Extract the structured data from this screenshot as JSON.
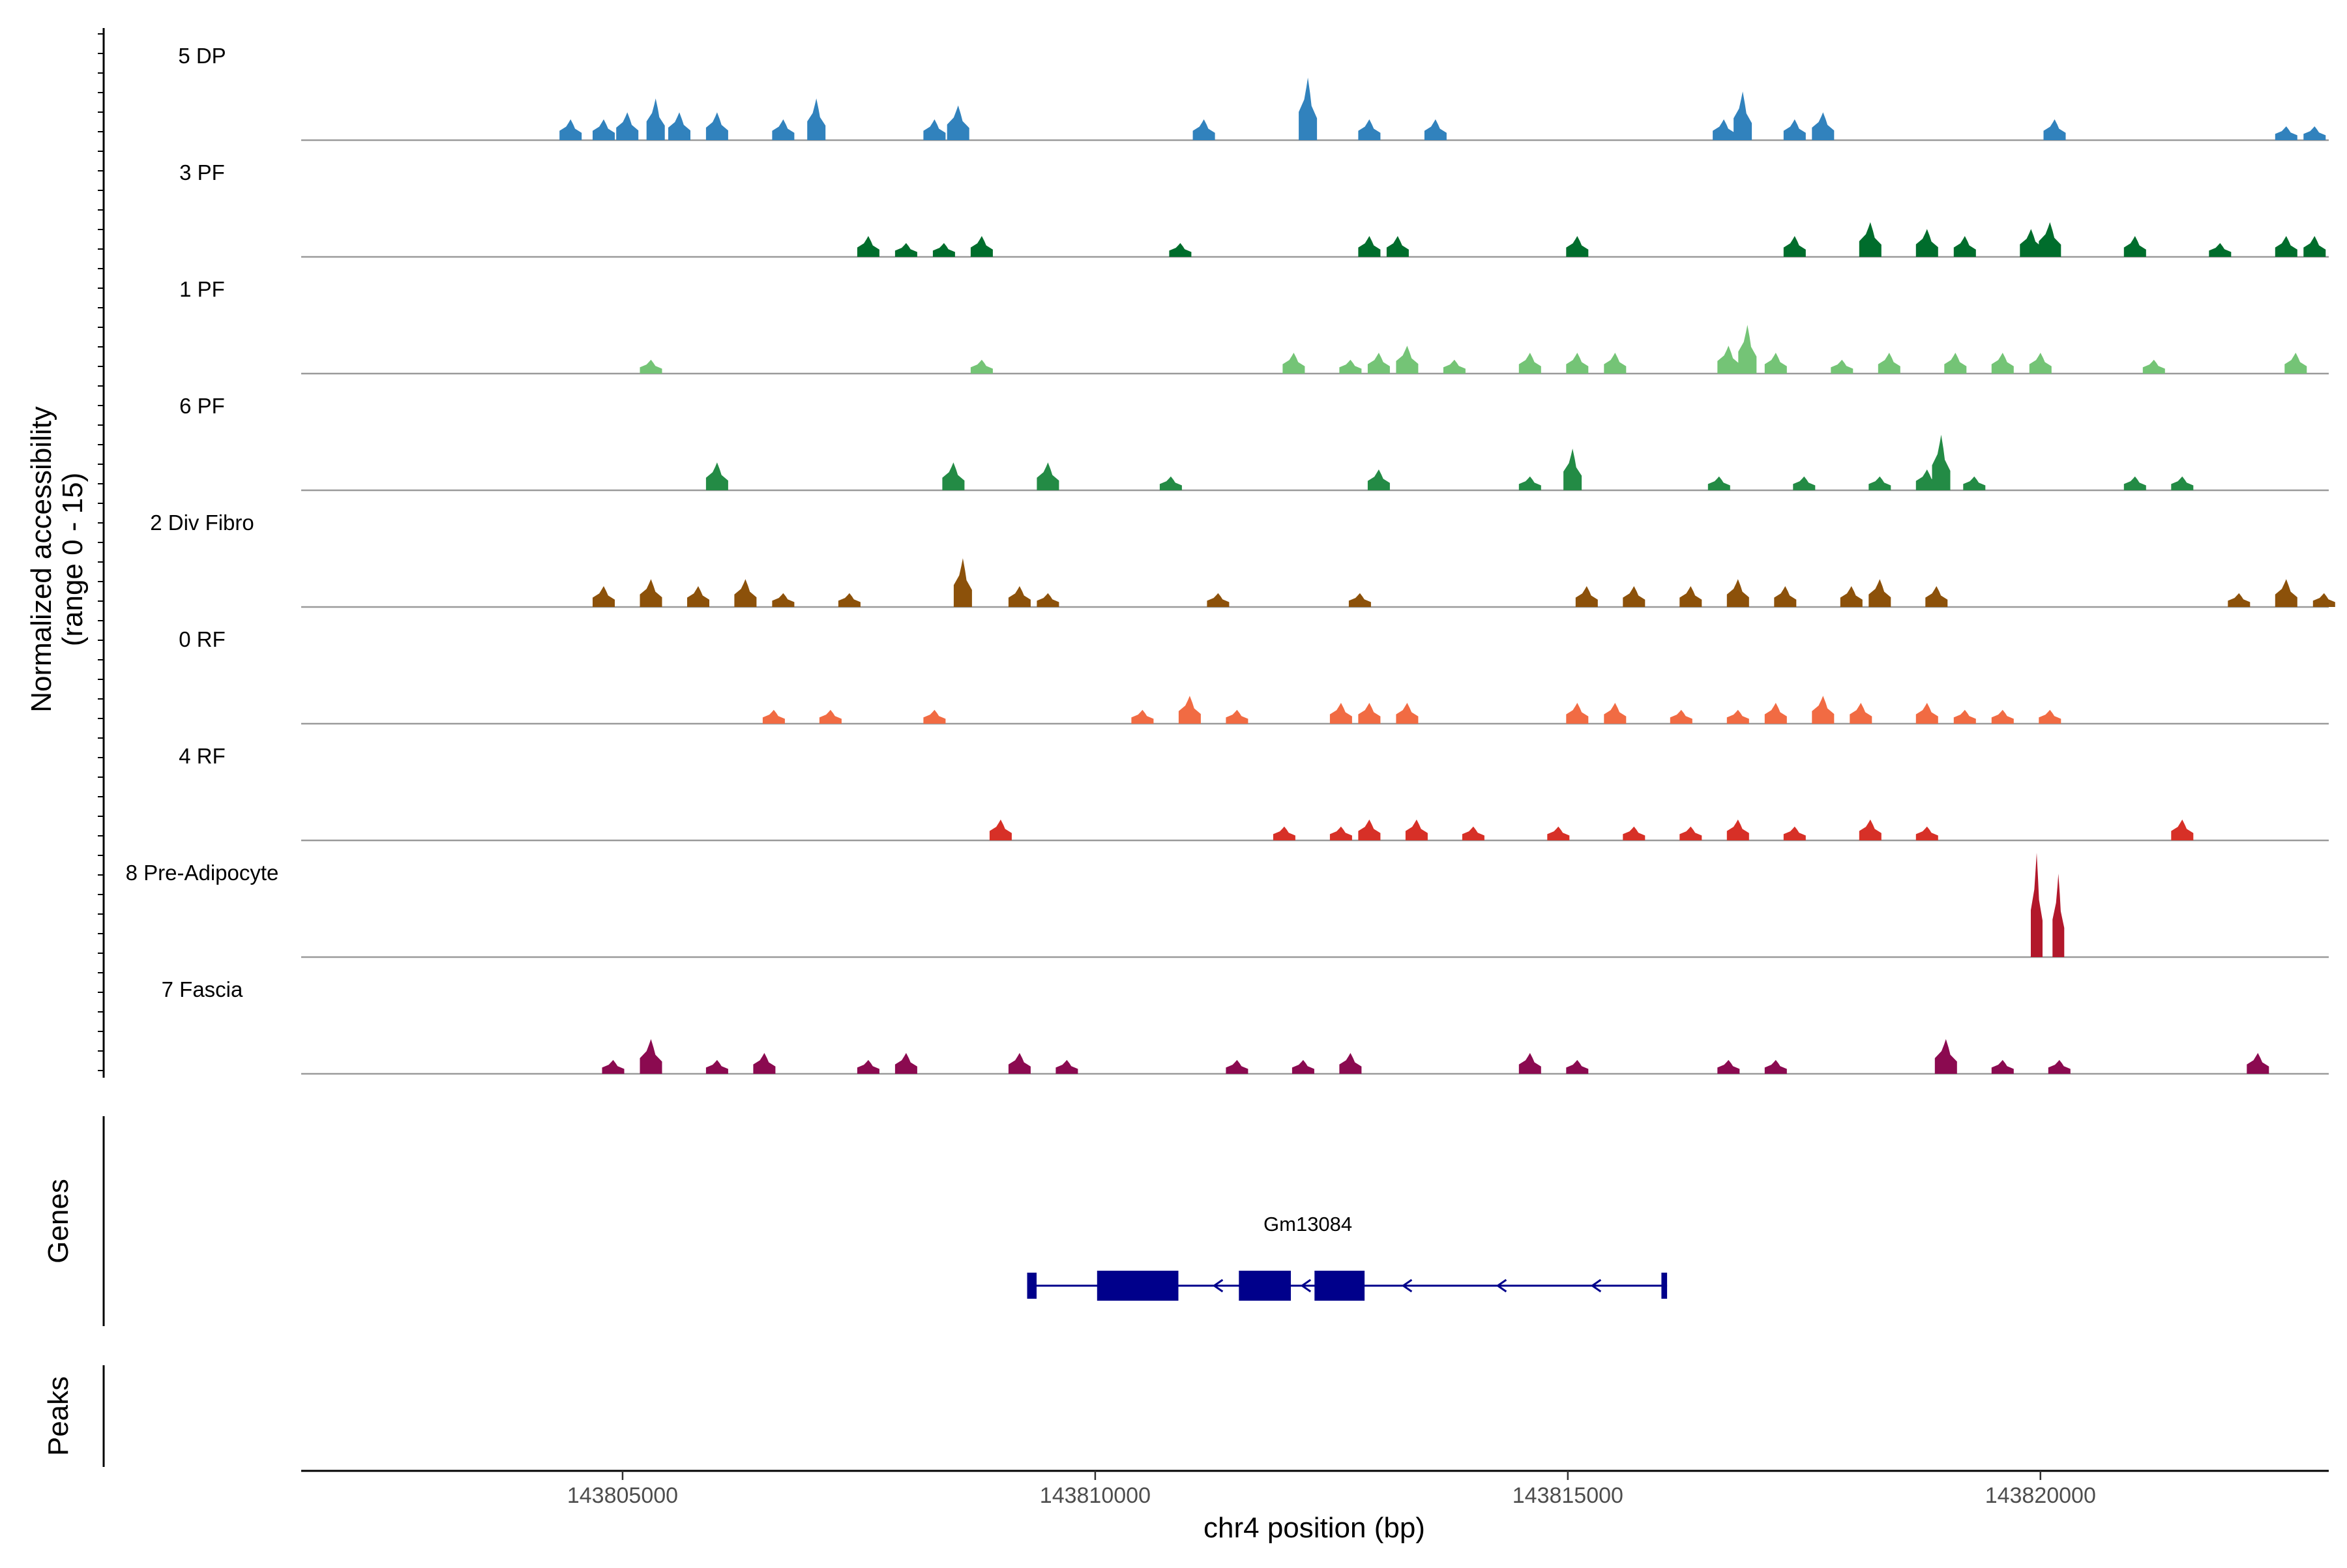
{
  "chart_data": {
    "type": "area",
    "title": "",
    "ylabel": "Normalized accessibility\n(range 0 - 15)",
    "ylabel_lines": [
      "Normalized accessibility",
      "(range 0 - 15)"
    ],
    "ylim": [
      0,
      15
    ],
    "xlabel": "chr4 position (bp)",
    "xlim": [
      143801600,
      143823050
    ],
    "x_ticks": [
      143805000,
      143810000,
      143815000,
      143820000
    ],
    "x_tick_labels": [
      "143805000",
      "143810000",
      "143815000",
      "143820000"
    ],
    "grid": false,
    "legend": "none",
    "series": [
      {
        "name": "5 DP",
        "color": "#3182bd",
        "peaks": [
          [
            143804450,
            3
          ],
          [
            143804800,
            3
          ],
          [
            143805050,
            4
          ],
          [
            143805350,
            6
          ],
          [
            143805600,
            4
          ],
          [
            143806000,
            4
          ],
          [
            143806700,
            3
          ],
          [
            143807050,
            6
          ],
          [
            143808300,
            3
          ],
          [
            143808550,
            5
          ],
          [
            143811150,
            3
          ],
          [
            143812250,
            9
          ],
          [
            143812900,
            3
          ],
          [
            143813600,
            3
          ],
          [
            143816650,
            3
          ],
          [
            143816850,
            7
          ],
          [
            143817400,
            3
          ],
          [
            143817700,
            4
          ],
          [
            143820150,
            3
          ],
          [
            143822600,
            2
          ],
          [
            143822900,
            2
          ]
        ]
      },
      {
        "name": "3 PF",
        "color": "#006d2c",
        "peaks": [
          [
            143807600,
            3
          ],
          [
            143808000,
            2
          ],
          [
            143808400,
            2
          ],
          [
            143808800,
            3
          ],
          [
            143810900,
            2
          ],
          [
            143812900,
            3
          ],
          [
            143813200,
            3
          ],
          [
            143815100,
            3
          ],
          [
            143817400,
            3
          ],
          [
            143818200,
            5
          ],
          [
            143818800,
            4
          ],
          [
            143819200,
            3
          ],
          [
            143819900,
            4
          ],
          [
            143820100,
            5
          ],
          [
            143821000,
            3
          ],
          [
            143821900,
            2
          ],
          [
            143822600,
            3
          ],
          [
            143822900,
            3
          ]
        ]
      },
      {
        "name": "1 PF",
        "color": "#74c476",
        "peaks": [
          [
            143805300,
            2
          ],
          [
            143808800,
            2
          ],
          [
            143812100,
            3
          ],
          [
            143812700,
            2
          ],
          [
            143813000,
            3
          ],
          [
            143813300,
            4
          ],
          [
            143813800,
            2
          ],
          [
            143814600,
            3
          ],
          [
            143815100,
            3
          ],
          [
            143815500,
            3
          ],
          [
            143816700,
            4
          ],
          [
            143816900,
            7
          ],
          [
            143817200,
            3
          ],
          [
            143817900,
            2
          ],
          [
            143818400,
            3
          ],
          [
            143819100,
            3
          ],
          [
            143819600,
            3
          ],
          [
            143820000,
            3
          ],
          [
            143821200,
            2
          ],
          [
            143822700,
            3
          ]
        ]
      },
      {
        "name": "6 PF",
        "color": "#238b45",
        "peaks": [
          [
            143806000,
            4
          ],
          [
            143808500,
            4
          ],
          [
            143809500,
            4
          ],
          [
            143810800,
            2
          ],
          [
            143813000,
            3
          ],
          [
            143814600,
            2
          ],
          [
            143815050,
            6
          ],
          [
            143816600,
            2
          ],
          [
            143817500,
            2
          ],
          [
            143818300,
            2
          ],
          [
            143818800,
            3
          ],
          [
            143818950,
            8
          ],
          [
            143819300,
            2
          ],
          [
            143821000,
            2
          ],
          [
            143821500,
            2
          ]
        ]
      },
      {
        "name": "2 Div Fibro",
        "color": "#8c510a",
        "peaks": [
          [
            143804800,
            3
          ],
          [
            143805300,
            4
          ],
          [
            143805800,
            3
          ],
          [
            143806300,
            4
          ],
          [
            143806700,
            2
          ],
          [
            143807400,
            2
          ],
          [
            143808600,
            7
          ],
          [
            143809200,
            3
          ],
          [
            143809500,
            2
          ],
          [
            143811300,
            2
          ],
          [
            143812800,
            2
          ],
          [
            143815200,
            3
          ],
          [
            143815700,
            3
          ],
          [
            143816300,
            3
          ],
          [
            143816800,
            4
          ],
          [
            143817300,
            3
          ],
          [
            143818000,
            3
          ],
          [
            143818300,
            4
          ],
          [
            143818900,
            3
          ],
          [
            143822100,
            2
          ],
          [
            143822600,
            4
          ],
          [
            143823000,
            2
          ]
        ]
      },
      {
        "name": "0 RF",
        "color": "#f16b43",
        "peaks": [
          [
            143806600,
            2
          ],
          [
            143807200,
            2
          ],
          [
            143808300,
            2
          ],
          [
            143810500,
            2
          ],
          [
            143811000,
            4
          ],
          [
            143811500,
            2
          ],
          [
            143812600,
            3
          ],
          [
            143812900,
            3
          ],
          [
            143813300,
            3
          ],
          [
            143815100,
            3
          ],
          [
            143815500,
            3
          ],
          [
            143816200,
            2
          ],
          [
            143816800,
            2
          ],
          [
            143817200,
            3
          ],
          [
            143817700,
            4
          ],
          [
            143818100,
            3
          ],
          [
            143818800,
            3
          ],
          [
            143819200,
            2
          ],
          [
            143819600,
            2
          ],
          [
            143820100,
            2
          ]
        ]
      },
      {
        "name": "4 RF",
        "color": "#d73027",
        "peaks": [
          [
            143809000,
            3
          ],
          [
            143812000,
            2
          ],
          [
            143812600,
            2
          ],
          [
            143812900,
            3
          ],
          [
            143813400,
            3
          ],
          [
            143814000,
            2
          ],
          [
            143814900,
            2
          ],
          [
            143815700,
            2
          ],
          [
            143816300,
            2
          ],
          [
            143816800,
            3
          ],
          [
            143817400,
            2
          ],
          [
            143818200,
            3
          ],
          [
            143818800,
            2
          ],
          [
            143821500,
            3
          ]
        ]
      },
      {
        "name": "8 Pre-Adipocyte",
        "color": "#b2182b",
        "peaks": [
          [
            143819960,
            15
          ],
          [
            143820190,
            12
          ]
        ]
      },
      {
        "name": "7 Fascia",
        "color": "#8b0a50",
        "peaks": [
          [
            143804900,
            2
          ],
          [
            143805300,
            5
          ],
          [
            143806000,
            2
          ],
          [
            143806500,
            3
          ],
          [
            143807600,
            2
          ],
          [
            143808000,
            3
          ],
          [
            143809200,
            3
          ],
          [
            143809700,
            2
          ],
          [
            143811500,
            2
          ],
          [
            143812200,
            2
          ],
          [
            143812700,
            3
          ],
          [
            143814600,
            3
          ],
          [
            143815100,
            2
          ],
          [
            143816700,
            2
          ],
          [
            143817200,
            2
          ],
          [
            143819000,
            5
          ],
          [
            143819600,
            2
          ],
          [
            143820200,
            2
          ],
          [
            143822300,
            3
          ]
        ]
      }
    ],
    "panels": {
      "genes": "Genes",
      "peaks": "Peaks"
    },
    "gene": {
      "name": "Gm13084",
      "start": 143809280,
      "end": 143816050,
      "strand": "-",
      "exons": [
        [
          143809280,
          143809380
        ],
        [
          143810020,
          143810880
        ],
        [
          143811520,
          143812070
        ],
        [
          143812320,
          143812850
        ],
        [
          143815990,
          143816050
        ]
      ]
    }
  }
}
